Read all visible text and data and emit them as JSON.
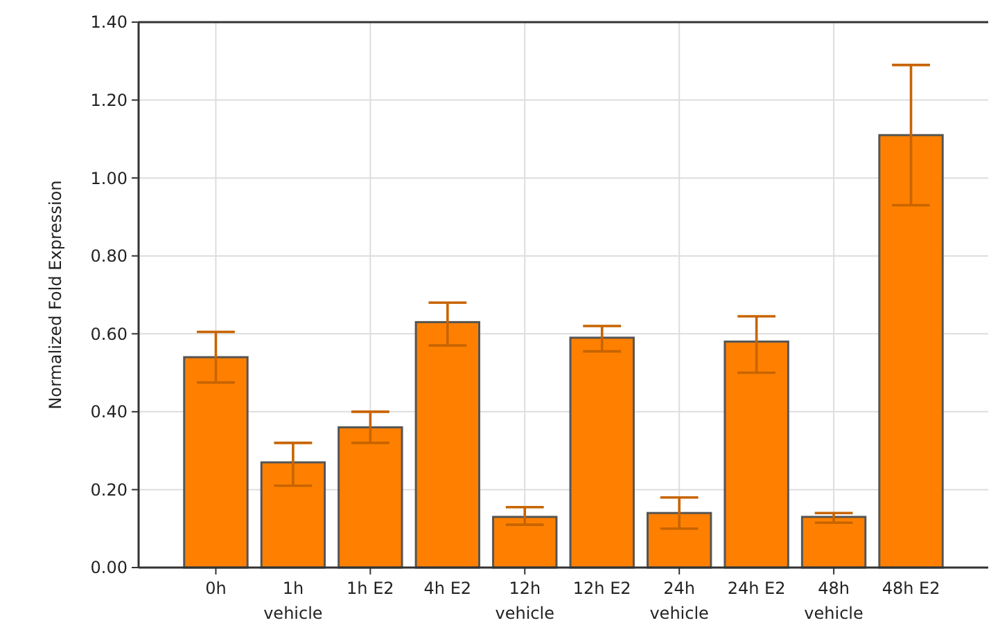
{
  "chart_data": {
    "type": "bar",
    "ylabel": "Normalized Fold Expression",
    "categories": [
      "0h",
      "1h vehicle",
      "1h E2",
      "4h E2",
      "12h vehicle",
      "12h E2",
      "24h vehicle",
      "24h E2",
      "48h vehicle",
      "48h E2"
    ],
    "values": [
      0.54,
      0.27,
      0.36,
      0.63,
      0.13,
      0.59,
      0.14,
      0.58,
      0.13,
      1.11
    ],
    "errors": [
      [
        0.475,
        0.605
      ],
      [
        0.21,
        0.32
      ],
      [
        0.32,
        0.4
      ],
      [
        0.57,
        0.68
      ],
      [
        0.11,
        0.155
      ],
      [
        0.555,
        0.62
      ],
      [
        0.1,
        0.18
      ],
      [
        0.5,
        0.645
      ],
      [
        0.115,
        0.14
      ],
      [
        0.93,
        1.29
      ]
    ],
    "color": "#ff8000",
    "ylim": [
      0,
      1.4
    ],
    "yticks": [
      {
        "value": 0,
        "label": "0.00"
      },
      {
        "value": 0.2,
        "label": "0.20"
      },
      {
        "value": 0.4,
        "label": "0.40"
      },
      {
        "value": 0.6,
        "label": "0.60"
      },
      {
        "value": 0.8,
        "label": "0.80"
      },
      {
        "value": 1,
        "label": "1.00"
      },
      {
        "value": 1.2,
        "label": "1.20"
      },
      {
        "value": 1.4,
        "label": "1.40"
      }
    ],
    "grid": true
  }
}
